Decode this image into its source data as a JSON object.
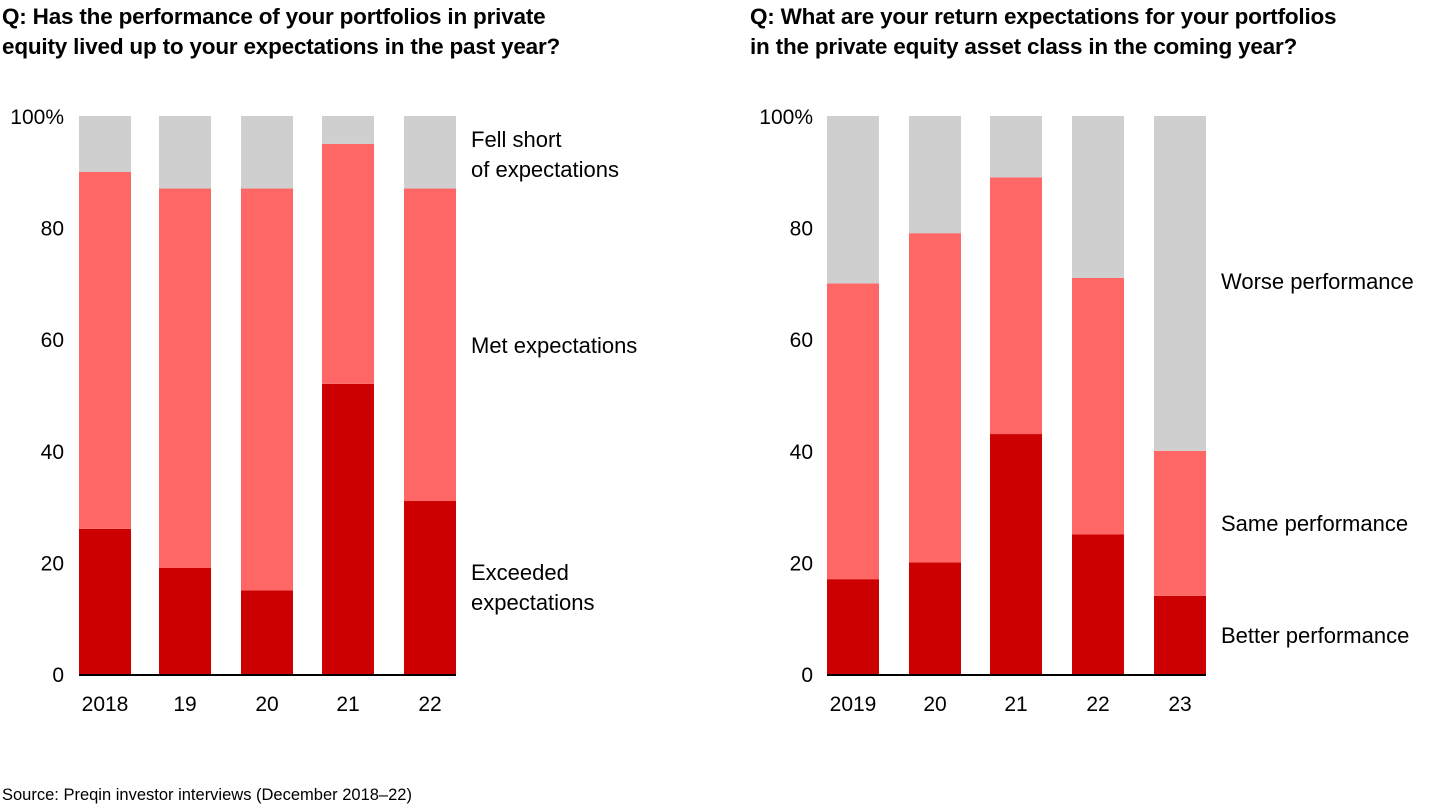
{
  "colors": {
    "exceeded": "#cc0000",
    "met": "#ff6666",
    "fell_short": "#cfcfcf",
    "axis": "#000000"
  },
  "source": "Source: Preqin investor interviews (December 2018–22)",
  "chart_data": [
    {
      "type": "bar",
      "stacked": true,
      "title": "Q: Has the performance of your portfolios in private equity lived up to your expectations in the past year?",
      "title_lines": [
        "Q: Has the performance of your portfolios in private",
        "equity lived up to your expectations in the past year?"
      ],
      "categories": [
        "2018",
        "19",
        "20",
        "21",
        "22"
      ],
      "xlabel": "",
      "ylabel": "",
      "ylim": [
        0,
        100
      ],
      "yticks": [
        "0",
        "20",
        "40",
        "60",
        "80",
        "100%"
      ],
      "series": [
        {
          "name": "Exceeded expectations",
          "label_lines": [
            "Exceeded",
            "expectations"
          ],
          "color_key": "exceeded",
          "values": [
            26,
            19,
            15,
            52,
            31
          ]
        },
        {
          "name": "Met expectations",
          "label_lines": [
            "Met expectations"
          ],
          "color_key": "met",
          "values": [
            64,
            68,
            72,
            43,
            56
          ]
        },
        {
          "name": "Fell short of expectations",
          "label_lines": [
            "Fell short",
            "of expectations"
          ],
          "color_key": "fell_short",
          "values": [
            10,
            13,
            13,
            5,
            13
          ]
        }
      ],
      "legend": "right (inline labels)"
    },
    {
      "type": "bar",
      "stacked": true,
      "title": "Q: What are your return expectations for your portfolios in the private equity asset class in the coming year?",
      "title_lines": [
        "Q: What are your return expectations for your portfolios",
        "in the private equity asset class in the coming year?"
      ],
      "categories": [
        "2019",
        "20",
        "21",
        "22",
        "23"
      ],
      "xlabel": "",
      "ylabel": "",
      "ylim": [
        0,
        100
      ],
      "yticks": [
        "0",
        "20",
        "40",
        "60",
        "80",
        "100%"
      ],
      "series": [
        {
          "name": "Better performance",
          "label_lines": [
            "Better performance"
          ],
          "color_key": "exceeded",
          "values": [
            17,
            20,
            43,
            25,
            14
          ]
        },
        {
          "name": "Same performance",
          "label_lines": [
            "Same performance"
          ],
          "color_key": "met",
          "values": [
            53,
            59,
            46,
            46,
            26
          ]
        },
        {
          "name": "Worse performance",
          "label_lines": [
            "Worse performance"
          ],
          "color_key": "fell_short",
          "values": [
            30,
            21,
            11,
            29,
            60
          ]
        }
      ],
      "legend": "right (inline labels)"
    }
  ]
}
